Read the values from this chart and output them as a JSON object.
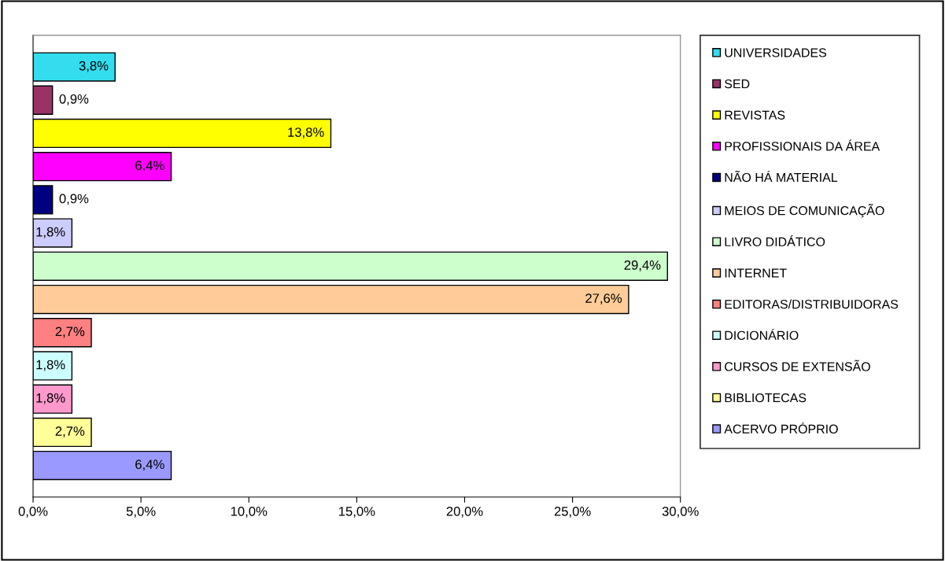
{
  "chart_data": {
    "type": "bar",
    "orientation": "horizontal",
    "categories": [
      null,
      null,
      null,
      null,
      null,
      null,
      null,
      null,
      null,
      null,
      null,
      null,
      null
    ],
    "series": [
      {
        "name": "UNIVERSIDADES",
        "color": "#33DDEE",
        "values": [
          3.8,
          null,
          null,
          null,
          null,
          null,
          null,
          null,
          null,
          null,
          null,
          null,
          null
        ],
        "value_labels": [
          "3,8%",
          null,
          null,
          null,
          null,
          null,
          null,
          null,
          null,
          null,
          null,
          null,
          null
        ]
      },
      {
        "name": "SED",
        "color": "#993366",
        "values": [
          null,
          0.9,
          null,
          null,
          null,
          null,
          null,
          null,
          null,
          null,
          null,
          null,
          null
        ],
        "value_labels": [
          null,
          "0,9%",
          null,
          null,
          null,
          null,
          null,
          null,
          null,
          null,
          null,
          null,
          null
        ]
      },
      {
        "name": "REVISTAS",
        "color": "#FFFF00",
        "values": [
          null,
          null,
          13.8,
          null,
          null,
          null,
          null,
          null,
          null,
          null,
          null,
          null,
          null
        ],
        "value_labels": [
          null,
          null,
          "13,8%",
          null,
          null,
          null,
          null,
          null,
          null,
          null,
          null,
          null,
          null
        ]
      },
      {
        "name": "PROFISSIONAIS DA ÁREA",
        "color": "#FF00FF",
        "values": [
          null,
          null,
          null,
          6.4,
          null,
          null,
          null,
          null,
          null,
          null,
          null,
          null,
          null
        ],
        "value_labels": [
          null,
          null,
          null,
          "6,4%",
          null,
          null,
          null,
          null,
          null,
          null,
          null,
          null,
          null
        ]
      },
      {
        "name": "NÃO HÁ MATERIAL",
        "color": "#000080",
        "values": [
          null,
          null,
          null,
          null,
          0.9,
          null,
          null,
          null,
          null,
          null,
          null,
          null,
          null
        ],
        "value_labels": [
          null,
          null,
          null,
          null,
          "0,9%",
          null,
          null,
          null,
          null,
          null,
          null,
          null,
          null
        ]
      },
      {
        "name": "MEIOS DE COMUNICAÇÃO",
        "color": "#CCCCFF",
        "values": [
          null,
          null,
          null,
          null,
          null,
          1.8,
          null,
          null,
          null,
          null,
          null,
          null,
          null
        ],
        "value_labels": [
          null,
          null,
          null,
          null,
          null,
          "1,8%",
          null,
          null,
          null,
          null,
          null,
          null,
          null
        ]
      },
      {
        "name": "LIVRO DIDÁTICO",
        "color": "#CCFFCC",
        "values": [
          null,
          null,
          null,
          null,
          null,
          null,
          29.4,
          null,
          null,
          null,
          null,
          null,
          null
        ],
        "value_labels": [
          null,
          null,
          null,
          null,
          null,
          null,
          "29,4%",
          null,
          null,
          null,
          null,
          null,
          null
        ]
      },
      {
        "name": "INTERNET",
        "color": "#FFCC99",
        "values": [
          null,
          null,
          null,
          null,
          null,
          null,
          null,
          27.6,
          null,
          null,
          null,
          null,
          null
        ],
        "value_labels": [
          null,
          null,
          null,
          null,
          null,
          null,
          null,
          "27,6%",
          null,
          null,
          null,
          null,
          null
        ]
      },
      {
        "name": "EDITORAS/DISTRIBUIDORAS",
        "color": "#FF8080",
        "values": [
          null,
          null,
          null,
          null,
          null,
          null,
          null,
          null,
          2.7,
          null,
          null,
          null,
          null
        ],
        "value_labels": [
          null,
          null,
          null,
          null,
          null,
          null,
          null,
          null,
          "2,7%",
          null,
          null,
          null,
          null
        ]
      },
      {
        "name": "DICIONÁRIO",
        "color": "#CCFFFF",
        "values": [
          null,
          null,
          null,
          null,
          null,
          null,
          null,
          null,
          null,
          1.8,
          null,
          null,
          null
        ],
        "value_labels": [
          null,
          null,
          null,
          null,
          null,
          null,
          null,
          null,
          null,
          "1,8%",
          null,
          null,
          null
        ]
      },
      {
        "name": "CURSOS DE EXTENSÃO",
        "color": "#FF99CC",
        "values": [
          null,
          null,
          null,
          null,
          null,
          null,
          null,
          null,
          null,
          null,
          1.8,
          null,
          null
        ],
        "value_labels": [
          null,
          null,
          null,
          null,
          null,
          null,
          null,
          null,
          null,
          null,
          "1,8%",
          null,
          null
        ]
      },
      {
        "name": "BIBLIOTECAS",
        "color": "#FFFF99",
        "values": [
          null,
          null,
          null,
          null,
          null,
          null,
          null,
          null,
          null,
          null,
          null,
          2.7,
          null
        ],
        "value_labels": [
          null,
          null,
          null,
          null,
          null,
          null,
          null,
          null,
          null,
          null,
          null,
          "2,7%",
          null
        ]
      },
      {
        "name": "ACERVO PRÓPRIO",
        "color": "#9999FF",
        "values": [
          null,
          null,
          null,
          null,
          null,
          null,
          null,
          null,
          null,
          null,
          null,
          null,
          6.4
        ],
        "value_labels": [
          null,
          null,
          null,
          null,
          null,
          null,
          null,
          null,
          null,
          null,
          null,
          null,
          "6,4%"
        ]
      }
    ],
    "xlim": [
      0,
      30
    ],
    "xticks": [
      {
        "value": 0,
        "label": "0,0%"
      },
      {
        "value": 5,
        "label": "5,0%"
      },
      {
        "value": 10,
        "label": "10,0%"
      },
      {
        "value": 15,
        "label": "15,0%"
      },
      {
        "value": 20,
        "label": "20,0%"
      },
      {
        "value": 25,
        "label": "25,0%"
      },
      {
        "value": 30,
        "label": "30,0%"
      }
    ],
    "tick_labels": "x",
    "grid": false,
    "legend": "right"
  }
}
